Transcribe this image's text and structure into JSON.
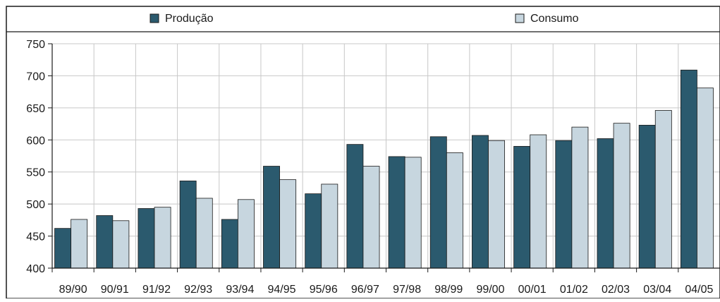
{
  "chart_data": {
    "type": "bar",
    "categories": [
      "89/90",
      "90/91",
      "91/92",
      "92/93",
      "93/94",
      "94/95",
      "95/96",
      "96/97",
      "97/98",
      "98/99",
      "99/00",
      "00/01",
      "01/02",
      "02/03",
      "03/04",
      "04/05"
    ],
    "series": [
      {
        "name": "Produção",
        "color": "#2b5a6e",
        "values": [
          462,
          482,
          493,
          536,
          476,
          559,
          516,
          593,
          574,
          605,
          607,
          590,
          599,
          602,
          623,
          709
        ]
      },
      {
        "name": "Consumo",
        "color": "#c7d6df",
        "values": [
          476,
          474,
          495,
          509,
          507,
          538,
          531,
          559,
          573,
          580,
          599,
          608,
          620,
          626,
          646,
          681
        ]
      }
    ],
    "ylim": [
      400,
      750
    ],
    "yticks": [
      400,
      450,
      500,
      550,
      600,
      650,
      700,
      750
    ],
    "grid": true,
    "legend_position": "top"
  }
}
